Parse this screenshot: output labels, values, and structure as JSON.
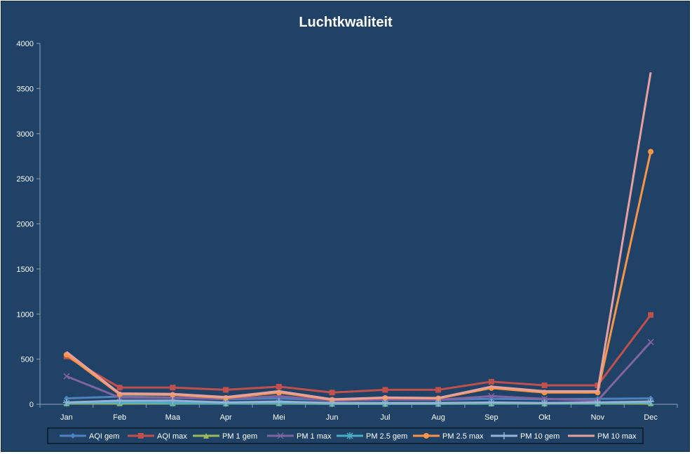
{
  "chart_data": {
    "type": "line",
    "title": "Luchtkwaliteit",
    "xlabel": "",
    "ylabel": "",
    "categories": [
      "Jan",
      "Feb",
      "Maa",
      "Apr",
      "Mei",
      "Jun",
      "Jul",
      "Aug",
      "Sep",
      "Okt",
      "Nov",
      "Dec"
    ],
    "ylim": [
      0,
      4000
    ],
    "yticks": [
      0,
      500,
      1000,
      1500,
      2000,
      2500,
      3000,
      3500,
      4000
    ],
    "grid": false,
    "legend_position": "bottom",
    "series": [
      {
        "name": "AQI gem",
        "color": "#4f81bd",
        "marker": "diamond",
        "values": [
          65,
          85,
          75,
          55,
          65,
          45,
          50,
          50,
          60,
          55,
          60,
          65
        ]
      },
      {
        "name": "AQI max",
        "color": "#c0504d",
        "marker": "square",
        "values": [
          530,
          185,
          185,
          160,
          195,
          130,
          160,
          160,
          250,
          210,
          210,
          990
        ]
      },
      {
        "name": "PM 1 gem",
        "color": "#9bbb59",
        "marker": "triangle",
        "values": [
          10,
          10,
          10,
          8,
          10,
          5,
          5,
          5,
          8,
          8,
          8,
          10
        ]
      },
      {
        "name": "PM 1 max",
        "color": "#8064a2",
        "marker": "x",
        "values": [
          310,
          75,
          70,
          60,
          90,
          40,
          50,
          50,
          90,
          60,
          40,
          690
        ]
      },
      {
        "name": "PM 2.5 gem",
        "color": "#4bacc6",
        "marker": "star",
        "values": [
          15,
          20,
          15,
          10,
          15,
          8,
          8,
          8,
          12,
          10,
          12,
          20
        ]
      },
      {
        "name": "PM 2.5 max",
        "color": "#f79646",
        "marker": "circle",
        "values": [
          550,
          110,
          105,
          70,
          130,
          50,
          70,
          65,
          180,
          130,
          130,
          2800
        ]
      },
      {
        "name": "PM 10 gem",
        "color": "#95b3d7",
        "marker": "plus",
        "values": [
          20,
          40,
          40,
          20,
          30,
          15,
          15,
          15,
          20,
          15,
          20,
          30
        ]
      },
      {
        "name": "PM 10 max",
        "color": "#e6a0a0",
        "marker": "none",
        "values": [
          580,
          120,
          115,
          80,
          145,
          55,
          75,
          70,
          195,
          145,
          145,
          3680
        ]
      }
    ]
  }
}
